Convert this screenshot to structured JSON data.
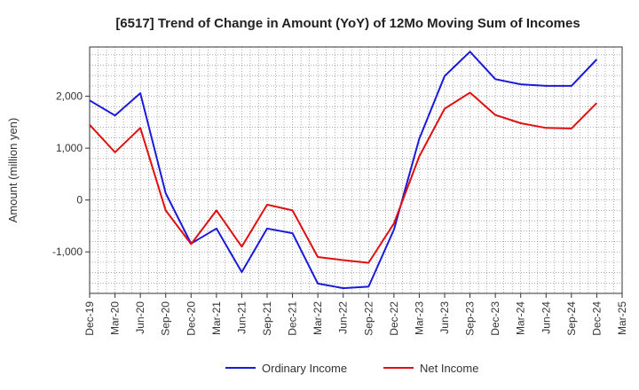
{
  "chart_data": {
    "type": "line",
    "title": "[6517]  Trend of Change in Amount (YoY) of 12Mo Moving Sum of Incomes",
    "xlabel": "",
    "ylabel": "Amount (million yen)",
    "categories": [
      "Dec-19",
      "Mar-20",
      "Jun-20",
      "Sep-20",
      "Dec-20",
      "Mar-21",
      "Jun-21",
      "Sep-21",
      "Dec-21",
      "Mar-22",
      "Jun-22",
      "Sep-22",
      "Dec-22",
      "Mar-23",
      "Jun-23",
      "Sep-23",
      "Dec-23",
      "Mar-24",
      "Jun-24",
      "Sep-24",
      "Dec-24",
      "Mar-25"
    ],
    "yticks": [
      -1000,
      0,
      1000,
      2000
    ],
    "ytick_labels": [
      "-1,000",
      "0",
      "1,000",
      "2,000"
    ],
    "ylim": [
      -1800,
      2950
    ],
    "grid": true,
    "legend_position": "bottom",
    "series": [
      {
        "name": "Ordinary Income",
        "color": "#1a1adb",
        "values": [
          1920,
          1630,
          2060,
          130,
          -840,
          -550,
          -1390,
          -550,
          -640,
          -1610,
          -1700,
          -1670,
          -570,
          1180,
          2390,
          2860,
          2330,
          2230,
          2200,
          2200,
          2710,
          null
        ]
      },
      {
        "name": "Net Income",
        "color": "#e01010",
        "values": [
          1450,
          920,
          1390,
          -200,
          -850,
          -200,
          -900,
          -90,
          -200,
          -1100,
          -1160,
          -1210,
          -450,
          840,
          1760,
          2070,
          1640,
          1480,
          1390,
          1380,
          1870,
          null
        ]
      }
    ]
  }
}
